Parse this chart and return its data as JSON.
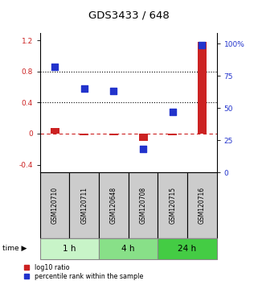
{
  "title": "GDS3433 / 648",
  "samples": [
    "GSM120710",
    "GSM120711",
    "GSM120648",
    "GSM120708",
    "GSM120715",
    "GSM120716"
  ],
  "log10_ratio": [
    0.07,
    -0.02,
    -0.02,
    -0.09,
    -0.02,
    1.18
  ],
  "percentile_rank": [
    82,
    65,
    63,
    18,
    47,
    99
  ],
  "time_groups": [
    {
      "label": "1 h",
      "samples": [
        0,
        1
      ],
      "color": "#c8f4c8"
    },
    {
      "label": "4 h",
      "samples": [
        2,
        3
      ],
      "color": "#88e088"
    },
    {
      "label": "24 h",
      "samples": [
        4,
        5
      ],
      "color": "#44cc44"
    }
  ],
  "ylim_left": [
    -0.5,
    1.3
  ],
  "ylim_right": [
    0,
    108.3
  ],
  "yticks_left": [
    -0.4,
    0.0,
    0.4,
    0.8,
    1.2
  ],
  "ytick_labels_left": [
    "-0.4",
    "0",
    "0.4",
    "0.8",
    "1.2"
  ],
  "yticks_right": [
    0,
    25,
    50,
    75,
    100
  ],
  "ytick_labels_right": [
    "0",
    "25",
    "50",
    "75",
    "100%"
  ],
  "hlines": [
    0.8,
    0.4
  ],
  "dashed_zero": 0.0,
  "red_color": "#cc2222",
  "blue_color": "#2233cc",
  "dot_size": 28,
  "bar_width": 0.3,
  "sample_box_color": "#cccccc",
  "background_color": "#ffffff"
}
